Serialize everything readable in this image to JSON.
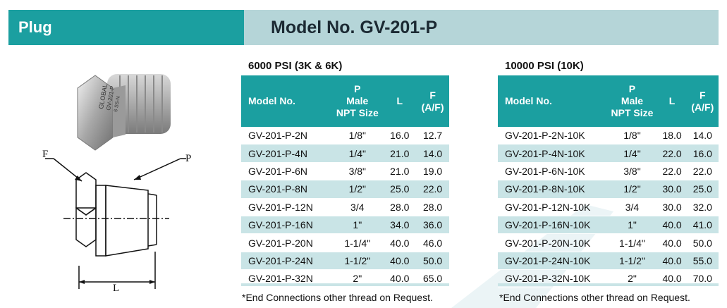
{
  "header": {
    "left_title": "Plug",
    "right_title": "Model No. GV-201-P"
  },
  "drawing": {
    "label_f": "F",
    "label_p": "P",
    "label_l": "L",
    "stamp_line1": "GLOBAL",
    "stamp_line2": "GV-201-P",
    "stamp_line3": "6 SS-N"
  },
  "tables": [
    {
      "title": "6000 PSI (3K & 6K)",
      "headers": {
        "model": "Model No.",
        "p_line1": "P",
        "p_line2": "Male",
        "p_line3": "NPT Size",
        "l": "L",
        "f_line1": "F",
        "f_line2": "(A/F)"
      },
      "rows": [
        {
          "model": "GV-201-P-2N",
          "p": "1/8\"",
          "l": "16.0",
          "f": "12.7"
        },
        {
          "model": "GV-201-P-4N",
          "p": "1/4\"",
          "l": "21.0",
          "f": "14.0"
        },
        {
          "model": "GV-201-P-6N",
          "p": "3/8\"",
          "l": "21.0",
          "f": "19.0"
        },
        {
          "model": "GV-201-P-8N",
          "p": "1/2\"",
          "l": "25.0",
          "f": "22.0"
        },
        {
          "model": "GV-201-P-12N",
          "p": "3/4",
          "l": "28.0",
          "f": "28.0"
        },
        {
          "model": "GV-201-P-16N",
          "p": "1\"",
          "l": "34.0",
          "f": "36.0"
        },
        {
          "model": "GV-201-P-20N",
          "p": "1-1/4\"",
          "l": "40.0",
          "f": "46.0"
        },
        {
          "model": "GV-201-P-24N",
          "p": "1-1/2\"",
          "l": "40.0",
          "f": "50.0"
        },
        {
          "model": "GV-201-P-32N",
          "p": "2\"",
          "l": "40.0",
          "f": "65.0"
        }
      ],
      "footnote": "*End Connections other thread on Request."
    },
    {
      "title": "10000 PSI (10K)",
      "headers": {
        "model": "Model No.",
        "p_line1": "P",
        "p_line2": "Male",
        "p_line3": "NPT Size",
        "l": "L",
        "f_line1": "F",
        "f_line2": "(A/F)"
      },
      "rows": [
        {
          "model": "GV-201-P-2N-10K",
          "p": "1/8\"",
          "l": "18.0",
          "f": "14.0"
        },
        {
          "model": "GV-201-P-4N-10K",
          "p": "1/4\"",
          "l": "22.0",
          "f": "16.0"
        },
        {
          "model": "GV-201-P-6N-10K",
          "p": "3/8\"",
          "l": "22.0",
          "f": "22.0"
        },
        {
          "model": "GV-201-P-8N-10K",
          "p": "1/2\"",
          "l": "30.0",
          "f": "25.0"
        },
        {
          "model": "GV-201-P-12N-10K",
          "p": "3/4",
          "l": "30.0",
          "f": "32.0"
        },
        {
          "model": "GV-201-P-16N-10K",
          "p": "1\"",
          "l": "40.0",
          "f": "41.0"
        },
        {
          "model": "GV-201-P-20N-10K",
          "p": "1-1/4\"",
          "l": "40.0",
          "f": "50.0"
        },
        {
          "model": "GV-201-P-24N-10K",
          "p": "1-1/2\"",
          "l": "40.0",
          "f": "55.0"
        },
        {
          "model": "GV-201-P-32N-10K",
          "p": "2\"",
          "l": "40.0",
          "f": "70.0"
        }
      ],
      "footnote": "*End Connections other thread on Request."
    }
  ],
  "colors": {
    "header_teal": "#1b9fa0",
    "header_light": "#b5d5d8",
    "row_alt": "#c9e4e6"
  }
}
